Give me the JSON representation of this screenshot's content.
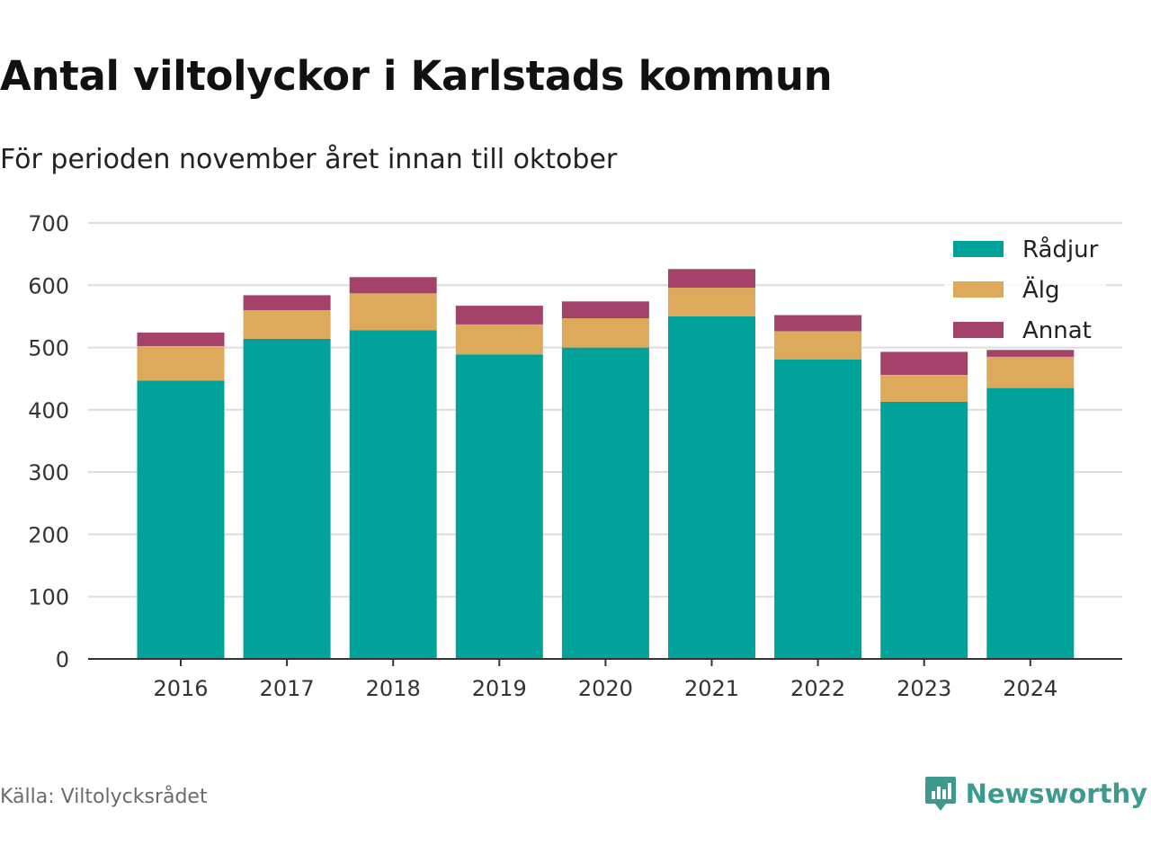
{
  "title": "Antal viltolyckor i Karlstads kommun",
  "subtitle": "För perioden november året innan till oktober",
  "source": "Källa: Viltolycksrådet",
  "brand": {
    "name": "Newsworthy",
    "icon": "newsworthy-logo-icon",
    "color": "#3e9a8f"
  },
  "chart_data": {
    "type": "bar",
    "stacked": true,
    "categories": [
      "2016",
      "2017",
      "2018",
      "2019",
      "2020",
      "2021",
      "2022",
      "2023",
      "2024"
    ],
    "series": [
      {
        "name": "Rådjur",
        "color": "#00a29a",
        "values": [
          447,
          514,
          528,
          489,
          500,
          550,
          481,
          413,
          435
        ]
      },
      {
        "name": "Älg",
        "color": "#dcaa5a",
        "values": [
          55,
          46,
          59,
          48,
          47,
          46,
          45,
          43,
          50
        ]
      },
      {
        "name": "Annat",
        "color": "#a4426a",
        "values": [
          22,
          24,
          26,
          30,
          27,
          30,
          26,
          37,
          11
        ]
      }
    ],
    "ylim": [
      0,
      700
    ],
    "yticks": [
      0,
      100,
      200,
      300,
      400,
      500,
      600,
      700
    ],
    "grid": true,
    "legend": "top-right"
  }
}
